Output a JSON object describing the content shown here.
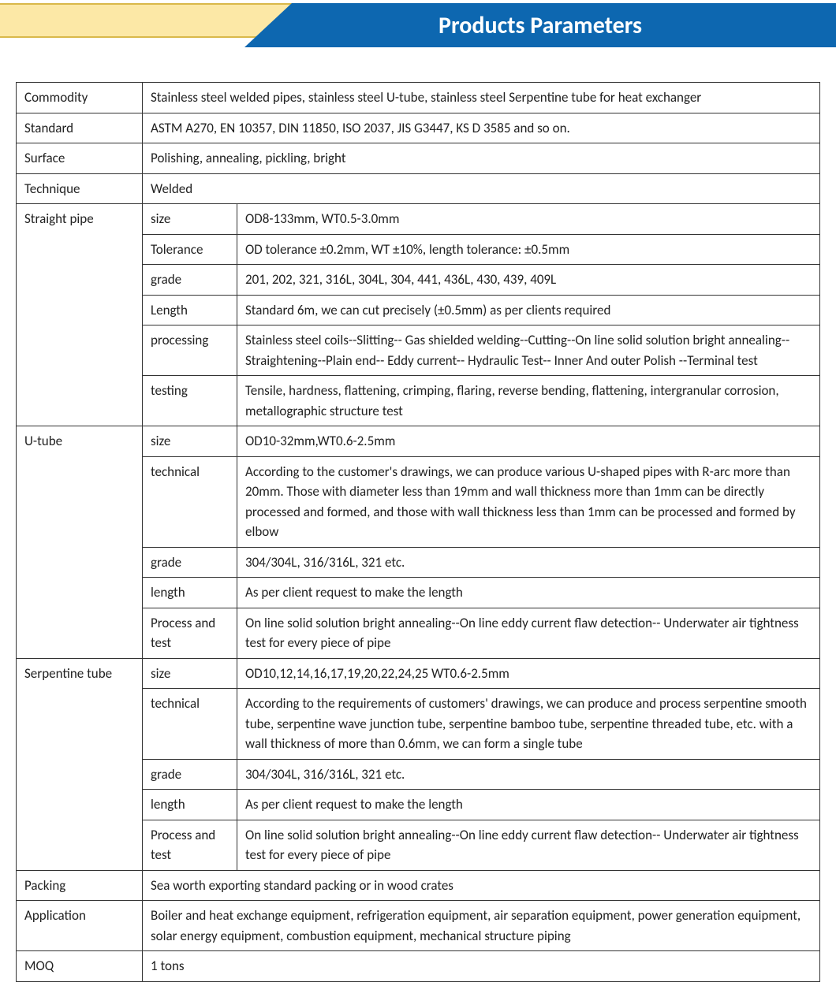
{
  "header": {
    "title": "Products Parameters",
    "banner_color": "#0d67b0",
    "accent_color": "#fce8a6",
    "accent_border": "#d9b84a",
    "title_color": "#ffffff"
  },
  "table": {
    "border_color": "#333333",
    "font_size": 17,
    "commodity": {
      "label": "Commodity",
      "value": "Stainless steel welded pipes, stainless steel U-tube, stainless steel Serpentine tube for heat exchanger"
    },
    "standard": {
      "label": "Standard",
      "value": "ASTM A270, EN 10357, DIN 11850, ISO 2037, JIS G3447, KS D 3585 and so on."
    },
    "surface": {
      "label": "Surface",
      "value": "Polishing, annealing, pickling, bright"
    },
    "technique": {
      "label": "Technique",
      "value": "Welded"
    },
    "straight_pipe": {
      "label": "Straight pipe",
      "size": {
        "label": "size",
        "value": "OD8-133mm, WT0.5-3.0mm"
      },
      "tolerance": {
        "label": "Tolerance",
        "value": "OD tolerance  ±0.2mm, WT  ±10%, length tolerance:  ±0.5mm"
      },
      "grade": {
        "label": "grade",
        "value": "201, 202, 321, 316L, 304L, 304, 441, 436L, 430, 439, 409L"
      },
      "length": {
        "label": "Length",
        "value": "Standard 6m, we can cut precisely (±0.5mm) as per clients required"
      },
      "processing": {
        "label": "processing",
        "value": "Stainless steel coils--Slitting-- Gas shielded welding--Cutting--On line solid solution bright annealing--Straightening--Plain end-- Eddy current-- Hydraulic Test-- Inner And outer Polish --Terminal test"
      },
      "testing": {
        "label": "testing",
        "value": "Tensile, hardness, flattening, crimping, flaring, reverse bending, flattening, intergranular corrosion, metallographic structure test"
      }
    },
    "u_tube": {
      "label": "U-tube",
      "size": {
        "label": "size",
        "value": "OD10-32mm,WT0.6-2.5mm"
      },
      "technical": {
        "label": "technical",
        "value": "According to the customer's drawings, we can produce various U-shaped pipes with R-arc more than 20mm. Those with diameter less than 19mm and wall thickness more than 1mm can be directly processed and formed, and those with wall thickness less than 1mm can be processed and formed by elbow"
      },
      "grade": {
        "label": "grade",
        "value": "304/304L, 316/316L, 321 etc."
      },
      "length": {
        "label": "length",
        "value": "As per client request to make the length"
      },
      "process_test": {
        "label": "Process and test",
        "value": "On line solid solution bright annealing--On line eddy current flaw detection-- Underwater air tightness test for every piece of pipe"
      }
    },
    "serpentine": {
      "label": "Serpentine tube",
      "size": {
        "label": "size",
        "value": "OD10,12,14,16,17,19,20,22,24,25 WT0.6-2.5mm"
      },
      "technical": {
        "label": "technical",
        "value": "According to the requirements of customers' drawings, we can produce and process serpentine smooth tube, serpentine wave junction tube, serpentine bamboo tube, serpentine threaded tube, etc. with a wall thickness of more than 0.6mm, we can form a single tube"
      },
      "grade": {
        "label": "grade",
        "value": "304/304L, 316/316L, 321 etc."
      },
      "length": {
        "label": "length",
        "value": "As per client request to make the length"
      },
      "process_test": {
        "label": "Process and test",
        "value": "On line solid solution bright annealing--On line eddy current flaw detection-- Underwater air tightness test for every piece of pipe"
      }
    },
    "packing": {
      "label": "Packing",
      "value": "Sea worth exporting standard packing or in wood crates"
    },
    "application": {
      "label": "Application",
      "value": "Boiler and heat exchange equipment, refrigeration equipment, air separation equipment, power generation equipment, solar energy equipment, combustion equipment, mechanical structure piping"
    },
    "moq": {
      "label": "MOQ",
      "value": "1 tons"
    }
  }
}
